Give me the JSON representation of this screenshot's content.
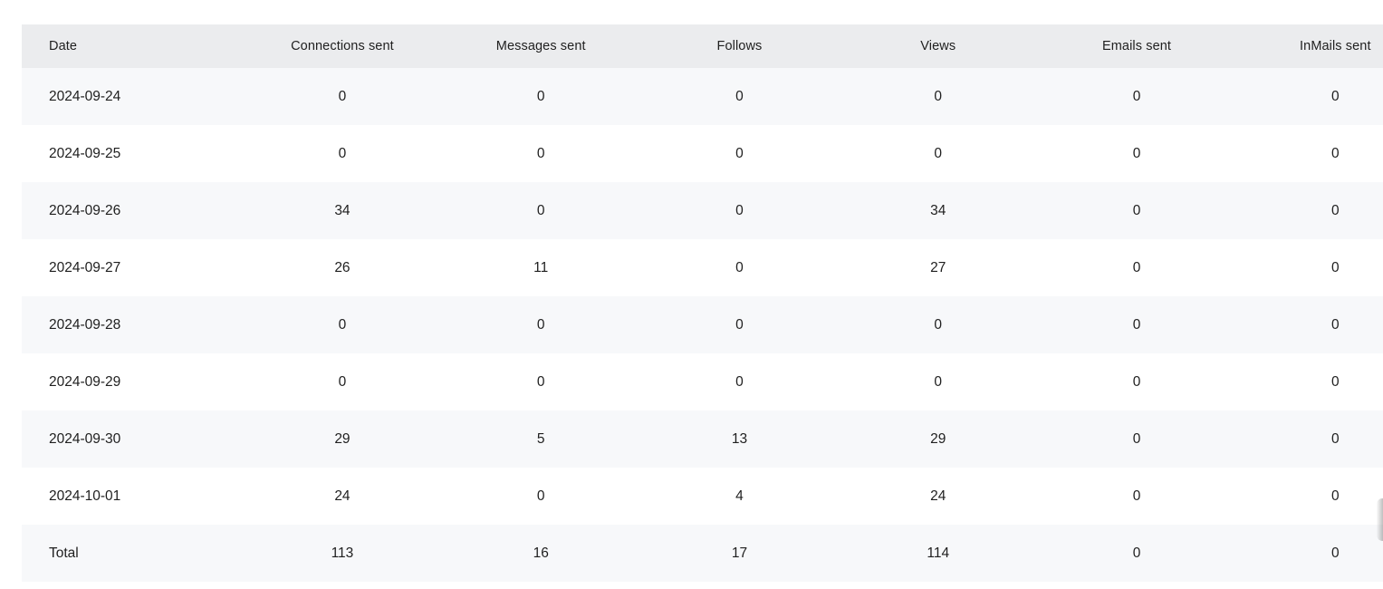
{
  "table": {
    "columns": [
      "Date",
      "Connections sent",
      "Messages sent",
      "Follows",
      "Views",
      "Emails sent",
      "InMails sent"
    ],
    "rows": [
      {
        "cells": [
          "2024-09-24",
          "0",
          "0",
          "0",
          "0",
          "0",
          "0"
        ]
      },
      {
        "cells": [
          "2024-09-25",
          "0",
          "0",
          "0",
          "0",
          "0",
          "0"
        ]
      },
      {
        "cells": [
          "2024-09-26",
          "34",
          "0",
          "0",
          "34",
          "0",
          "0"
        ]
      },
      {
        "cells": [
          "2024-09-27",
          "26",
          "11",
          "0",
          "27",
          "0",
          "0"
        ]
      },
      {
        "cells": [
          "2024-09-28",
          "0",
          "0",
          "0",
          "0",
          "0",
          "0"
        ]
      },
      {
        "cells": [
          "2024-09-29",
          "0",
          "0",
          "0",
          "0",
          "0",
          "0"
        ]
      },
      {
        "cells": [
          "2024-09-30",
          "29",
          "5",
          "13",
          "29",
          "0",
          "0"
        ]
      },
      {
        "cells": [
          "2024-10-01",
          "24",
          "0",
          "4",
          "24",
          "0",
          "0"
        ]
      },
      {
        "cells": [
          "Total",
          "113",
          "16",
          "17",
          "114",
          "0",
          "0"
        ]
      }
    ]
  },
  "colors": {
    "header_bg": "#ebecee",
    "row_alt_bg": "#f7f8fa",
    "row_bg": "#ffffff",
    "text": "#1f1f1f"
  }
}
